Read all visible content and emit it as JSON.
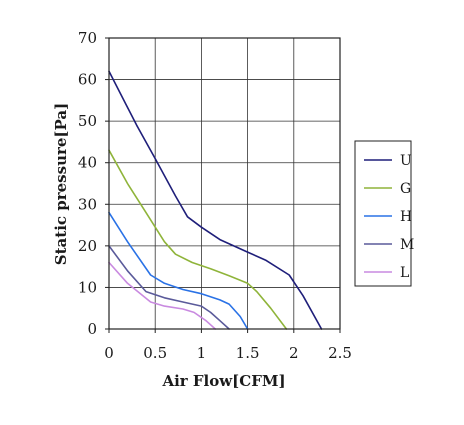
{
  "chart_data": {
    "type": "line",
    "title": "",
    "xlabel": "Air Flow[CFM]",
    "ylabel": "Static pressure[Pa]",
    "xlim": [
      0,
      2.5
    ],
    "ylim": [
      0,
      70
    ],
    "xticks": [
      0,
      0.5,
      1,
      1.5,
      2,
      2.5
    ],
    "xtick_labels": [
      "0",
      "0.5",
      "1",
      "1.5",
      "2",
      "2.5"
    ],
    "yticks": [
      0,
      10,
      20,
      30,
      40,
      50,
      60,
      70
    ],
    "ytick_labels": [
      "0",
      "10",
      "20",
      "30",
      "40",
      "50",
      "60",
      "70"
    ],
    "grid": true,
    "legend_position": "right",
    "series": [
      {
        "name": "U",
        "color": "#1f1f7a",
        "x": [
          0,
          0.3,
          0.5,
          0.72,
          0.85,
          1.0,
          1.2,
          1.5,
          1.7,
          1.95,
          2.1,
          2.3
        ],
        "y": [
          62,
          49,
          41,
          32,
          27,
          24.5,
          21.5,
          18.5,
          16.5,
          13,
          8,
          0
        ]
      },
      {
        "name": "G",
        "color": "#8fb43a",
        "x": [
          0,
          0.2,
          0.4,
          0.6,
          0.72,
          0.9,
          1.1,
          1.3,
          1.5,
          1.6,
          1.75,
          1.92
        ],
        "y": [
          43,
          35,
          28,
          21,
          18,
          16,
          14.5,
          12.8,
          11,
          9,
          5,
          0
        ]
      },
      {
        "name": "H",
        "color": "#2a72e6",
        "x": [
          0,
          0.2,
          0.45,
          0.6,
          0.8,
          1.0,
          1.2,
          1.3,
          1.42,
          1.5
        ],
        "y": [
          28,
          21,
          13,
          11,
          9.5,
          8.5,
          7,
          6,
          3,
          0
        ]
      },
      {
        "name": "M",
        "color": "#5a5a9a",
        "x": [
          0,
          0.2,
          0.4,
          0.6,
          0.8,
          1.0,
          1.1,
          1.2,
          1.3
        ],
        "y": [
          20,
          14,
          9,
          7.5,
          6.5,
          5.5,
          4,
          2,
          0
        ]
      },
      {
        "name": "L",
        "color": "#c98ae0",
        "x": [
          0,
          0.2,
          0.45,
          0.6,
          0.8,
          0.92,
          1.05,
          1.15
        ],
        "y": [
          16,
          11,
          6.5,
          5.5,
          4.8,
          4,
          2,
          0
        ]
      }
    ]
  }
}
